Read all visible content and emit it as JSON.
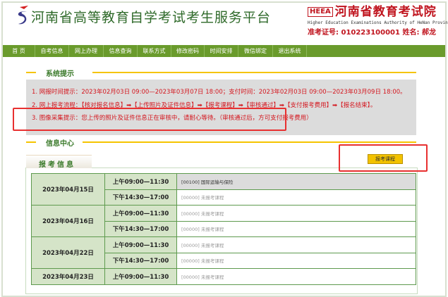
{
  "header": {
    "site_title": "河南省高等教育自学考试考生服务平台",
    "org_badge": "HEEA",
    "org_name": "河南省教育考试院",
    "org_en": "Higher Education Examinations Authority of HeNan Province",
    "student_info": "准考证号: 010223100001   姓名: 郝龙"
  },
  "nav": [
    "首 页",
    "自考信息",
    "网上办理",
    "信息查询",
    "联系方式",
    "修改密码",
    "时间安排",
    "微信绑定",
    "退出系统"
  ],
  "system_notice": {
    "title": "系统提示",
    "lines": [
      "1. 网报时间提示：2023年02月03日 09:00—2023年03月07日 18:00；支付时间：2023年02月03日 09:00—2023年03月09日 18:00。",
      "2. 网上报考流程：【核对报名信息】➡【上传照片及证件信息】➡【报考课程】➡【审核通过】➡【支付报考费用】➡【报名结束】。",
      "3. 图像采集提示：您上传的照片及证件信息正在审核中，请耐心等待。（审核通过后，方可支付报考费用）"
    ]
  },
  "info_center": {
    "title": "信息中心",
    "tab": "报考信息",
    "button": "报考课程",
    "schedule": [
      {
        "date": "2023年04月15日",
        "slots": [
          {
            "time": "上午09:00—11:30",
            "course": "[00100] 国际运输与保险"
          },
          {
            "time": "下午14:30—17:00",
            "course": "[00000] 未报考课程"
          }
        ]
      },
      {
        "date": "2023年04月16日",
        "slots": [
          {
            "time": "上午09:00—11:30",
            "course": "[00000] 未报考课程"
          },
          {
            "time": "下午14:30—17:00",
            "course": "[00000] 未报考课程"
          }
        ]
      },
      {
        "date": "2023年04月22日",
        "slots": [
          {
            "time": "上午09:00—11:30",
            "course": "[00000] 未报考课程"
          },
          {
            "time": "下午14:30—17:00",
            "course": "[00000] 未报考课程"
          }
        ]
      },
      {
        "date": "2023年04月23日",
        "slots": [
          {
            "time": "上午09:00—11:30",
            "course": "[00000] 未报考课程"
          }
        ]
      }
    ]
  },
  "colors": {
    "nav_green": "#6a9b2c",
    "alert_red": "#d4161e",
    "accent_yellow": "#f5c400"
  }
}
